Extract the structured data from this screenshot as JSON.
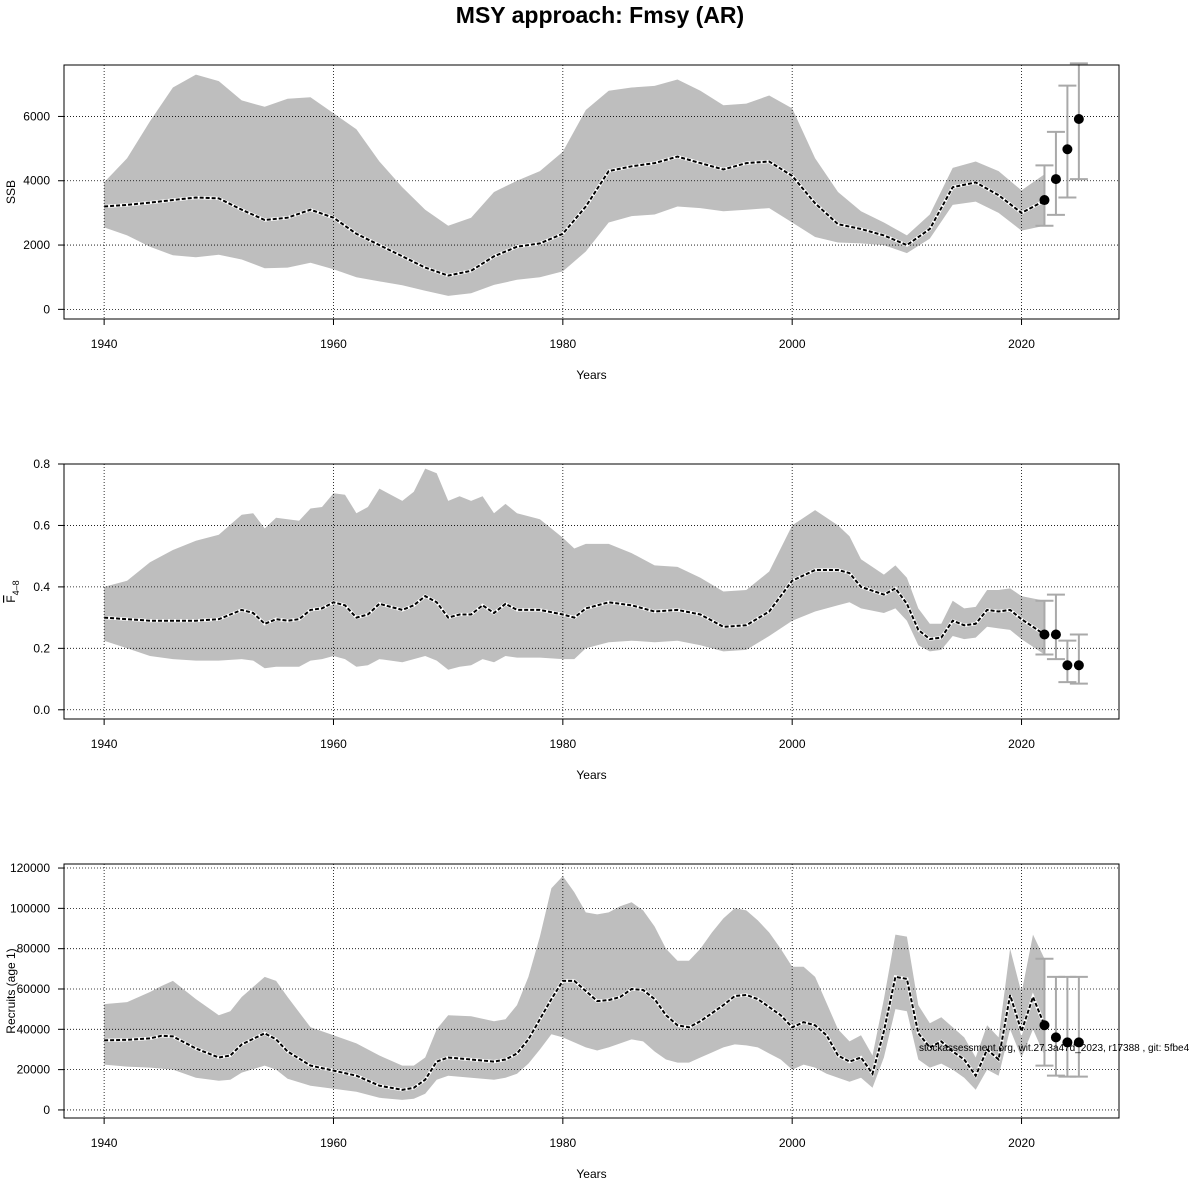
{
  "title": "MSY approach: Fmsy (AR)",
  "footnote": "stockassessment.org, wit.27.3a47d_2023, r17388 , git: 5fbe4",
  "chart_data": [
    {
      "type": "line",
      "id": "ssb",
      "ylabel": "SSB",
      "ylabel_parts": [
        "SSB"
      ],
      "xlabel": "Years",
      "xlim": [
        1936.5,
        2028.5
      ],
      "ylim": [
        -300,
        7600
      ],
      "xticks": [
        1940,
        1960,
        1980,
        2000,
        2020
      ],
      "yticks": [
        0,
        2000,
        4000,
        6000
      ],
      "grid": true,
      "band_color": "#bebebe",
      "line_color": "#000000",
      "series": [
        {
          "x": [
            1940,
            1942,
            1944,
            1946,
            1948,
            1950,
            1952,
            1954,
            1956,
            1958,
            1960,
            1962,
            1964,
            1966,
            1968,
            1970,
            1972,
            1974,
            1976,
            1978,
            1980,
            1982,
            1984,
            1986,
            1988,
            1990,
            1992,
            1994,
            1996,
            1998,
            2000,
            2002,
            2004,
            2006,
            2008,
            2010,
            2012,
            2014,
            2016,
            2018,
            2020,
            2022
          ],
          "estimate": [
            3200,
            3250,
            3320,
            3400,
            3480,
            3450,
            3100,
            2780,
            2850,
            3100,
            2850,
            2350,
            2000,
            1650,
            1300,
            1050,
            1200,
            1650,
            1950,
            2050,
            2350,
            3200,
            4300,
            4450,
            4550,
            4750,
            4550,
            4350,
            4550,
            4600,
            4150,
            3300,
            2650,
            2500,
            2300,
            2000,
            2500,
            3800,
            3950,
            3550,
            3000,
            3380
          ],
          "lower": [
            2550,
            2300,
            1950,
            1680,
            1620,
            1700,
            1550,
            1280,
            1300,
            1450,
            1250,
            1000,
            870,
            750,
            580,
            420,
            500,
            760,
            920,
            1000,
            1180,
            1800,
            2700,
            2900,
            2950,
            3200,
            3150,
            3050,
            3100,
            3150,
            2700,
            2250,
            2080,
            2050,
            2000,
            1750,
            2200,
            3250,
            3350,
            3000,
            2450,
            2600
          ],
          "upper": [
            3950,
            4700,
            5850,
            6900,
            7300,
            7100,
            6500,
            6300,
            6550,
            6600,
            6100,
            5600,
            4600,
            3800,
            3100,
            2600,
            2850,
            3650,
            4000,
            4300,
            4900,
            6200,
            6800,
            6900,
            6950,
            7150,
            6800,
            6350,
            6400,
            6650,
            6250,
            4700,
            3650,
            3050,
            2700,
            2300,
            2950,
            4400,
            4600,
            4300,
            3700,
            4200
          ]
        }
      ],
      "forecast": [
        {
          "year": 2022,
          "median": 3400,
          "low": 2600,
          "high": 4480
        },
        {
          "year": 2023,
          "median": 4050,
          "low": 2940,
          "high": 5520
        },
        {
          "year": 2024,
          "median": 4980,
          "low": 3480,
          "high": 6960
        },
        {
          "year": 2025,
          "median": 5920,
          "low": 4050,
          "high": 7650
        }
      ]
    },
    {
      "type": "line",
      "id": "fbar",
      "ylabel": "F̄4-8",
      "ylabel_parts": [
        "F",
        "4–8"
      ],
      "xlabel": "Years",
      "xlim": [
        1936.5,
        2028.5
      ],
      "ylim": [
        -0.03,
        0.8
      ],
      "xticks": [
        1940,
        1960,
        1980,
        2000,
        2020
      ],
      "yticks": [
        0.0,
        0.2,
        0.4,
        0.6,
        0.8
      ],
      "ytick_labels": [
        "0.0",
        "0.2",
        "0.4",
        "0.6",
        "0.8"
      ],
      "grid": true,
      "band_color": "#bebebe",
      "line_color": "#000000",
      "series": [
        {
          "x": [
            1940,
            1942,
            1944,
            1946,
            1948,
            1950,
            1952,
            1953,
            1954,
            1955,
            1956,
            1957,
            1958,
            1959,
            1960,
            1961,
            1962,
            1963,
            1964,
            1965,
            1966,
            1967,
            1968,
            1969,
            1970,
            1971,
            1972,
            1973,
            1974,
            1975,
            1976,
            1978,
            1980,
            1981,
            1982,
            1984,
            1986,
            1988,
            1990,
            1992,
            1994,
            1996,
            1998,
            2000,
            2002,
            2004,
            2005,
            2006,
            2008,
            2009,
            2010,
            2011,
            2012,
            2013,
            2014,
            2015,
            2016,
            2017,
            2018,
            2019,
            2020,
            2022
          ],
          "estimate": [
            0.3,
            0.295,
            0.29,
            0.29,
            0.29,
            0.295,
            0.325,
            0.315,
            0.28,
            0.295,
            0.29,
            0.295,
            0.325,
            0.33,
            0.35,
            0.34,
            0.3,
            0.31,
            0.345,
            0.335,
            0.325,
            0.34,
            0.37,
            0.35,
            0.3,
            0.31,
            0.31,
            0.34,
            0.315,
            0.345,
            0.325,
            0.325,
            0.31,
            0.3,
            0.33,
            0.35,
            0.34,
            0.32,
            0.325,
            0.31,
            0.27,
            0.275,
            0.32,
            0.42,
            0.455,
            0.455,
            0.445,
            0.4,
            0.375,
            0.395,
            0.345,
            0.26,
            0.23,
            0.235,
            0.29,
            0.275,
            0.28,
            0.325,
            0.32,
            0.325,
            0.295,
            0.245
          ],
          "lower": [
            0.225,
            0.2,
            0.175,
            0.165,
            0.16,
            0.16,
            0.165,
            0.16,
            0.135,
            0.14,
            0.14,
            0.14,
            0.16,
            0.165,
            0.175,
            0.165,
            0.14,
            0.145,
            0.165,
            0.16,
            0.155,
            0.165,
            0.175,
            0.16,
            0.13,
            0.14,
            0.145,
            0.165,
            0.155,
            0.175,
            0.17,
            0.17,
            0.165,
            0.165,
            0.2,
            0.22,
            0.225,
            0.22,
            0.225,
            0.21,
            0.19,
            0.195,
            0.24,
            0.29,
            0.32,
            0.34,
            0.35,
            0.33,
            0.315,
            0.33,
            0.29,
            0.21,
            0.19,
            0.195,
            0.24,
            0.23,
            0.235,
            0.27,
            0.265,
            0.26,
            0.23,
            0.18
          ],
          "upper": [
            0.4,
            0.42,
            0.48,
            0.52,
            0.55,
            0.57,
            0.635,
            0.64,
            0.59,
            0.625,
            0.62,
            0.615,
            0.655,
            0.66,
            0.705,
            0.7,
            0.64,
            0.66,
            0.72,
            0.7,
            0.68,
            0.71,
            0.785,
            0.77,
            0.68,
            0.695,
            0.68,
            0.695,
            0.64,
            0.67,
            0.64,
            0.62,
            0.56,
            0.525,
            0.54,
            0.54,
            0.51,
            0.47,
            0.465,
            0.43,
            0.385,
            0.39,
            0.45,
            0.6,
            0.65,
            0.6,
            0.565,
            0.49,
            0.44,
            0.47,
            0.43,
            0.33,
            0.28,
            0.28,
            0.355,
            0.33,
            0.335,
            0.39,
            0.39,
            0.395,
            0.37,
            0.355
          ]
        }
      ],
      "forecast": [
        {
          "year": 2022,
          "median": 0.245,
          "low": 0.18,
          "high": 0.355
        },
        {
          "year": 2023,
          "median": 0.245,
          "low": 0.165,
          "high": 0.375
        },
        {
          "year": 2024,
          "median": 0.145,
          "low": 0.09,
          "high": 0.225
        },
        {
          "year": 2025,
          "median": 0.145,
          "low": 0.085,
          "high": 0.245
        }
      ]
    },
    {
      "type": "line",
      "id": "recruits",
      "ylabel": "Recruits (age 1)",
      "ylabel_parts": [
        "Recruits (age 1)"
      ],
      "xlabel": "Years",
      "xlim": [
        1936.5,
        2028.5
      ],
      "ylim": [
        -4000,
        122000
      ],
      "xticks": [
        1940,
        1960,
        1980,
        2000,
        2020
      ],
      "yticks": [
        0,
        20000,
        40000,
        60000,
        80000,
        100000,
        120000
      ],
      "grid": true,
      "band_color": "#bebebe",
      "line_color": "#000000",
      "series": [
        {
          "x": [
            1940,
            1942,
            1944,
            1945,
            1946,
            1948,
            1950,
            1951,
            1952,
            1954,
            1955,
            1956,
            1958,
            1960,
            1962,
            1964,
            1966,
            1967,
            1968,
            1969,
            1970,
            1972,
            1974,
            1975,
            1976,
            1977,
            1978,
            1979,
            1980,
            1981,
            1982,
            1983,
            1984,
            1985,
            1986,
            1987,
            1988,
            1989,
            1990,
            1991,
            1992,
            1993,
            1994,
            1995,
            1996,
            1997,
            1998,
            1999,
            2000,
            2001,
            2002,
            2003,
            2004,
            2005,
            2006,
            2007,
            2008,
            2009,
            2010,
            2011,
            2012,
            2013,
            2014,
            2015,
            2016,
            2017,
            2018,
            2019,
            2020,
            2021,
            2022
          ],
          "estimate": [
            34500,
            34800,
            35500,
            36800,
            36500,
            30500,
            26000,
            27000,
            32500,
            38000,
            35000,
            29000,
            22000,
            19500,
            17000,
            12000,
            10000,
            11000,
            15000,
            24000,
            26000,
            25000,
            24000,
            25000,
            28000,
            35000,
            45000,
            55000,
            64000,
            64000,
            59000,
            54000,
            54500,
            56000,
            60000,
            59500,
            55000,
            47000,
            42000,
            41000,
            44000,
            48000,
            52000,
            56500,
            57000,
            55000,
            51000,
            47000,
            41000,
            43500,
            42000,
            37000,
            27000,
            24000,
            26000,
            18000,
            39000,
            66000,
            65000,
            38000,
            31000,
            34000,
            29000,
            25000,
            17000,
            30000,
            25000,
            57000,
            39000,
            56000,
            42000
          ],
          "lower": [
            22500,
            21500,
            21000,
            20500,
            20000,
            16000,
            14500,
            15000,
            18500,
            22000,
            20000,
            15500,
            12000,
            10500,
            9000,
            6000,
            5000,
            5500,
            8000,
            15000,
            17000,
            16000,
            15000,
            16000,
            18000,
            23000,
            30000,
            37500,
            36000,
            33500,
            31000,
            29500,
            31000,
            33000,
            35000,
            34000,
            29000,
            25000,
            23500,
            23500,
            26000,
            28500,
            31000,
            32500,
            32000,
            31000,
            28000,
            25000,
            20000,
            22500,
            21000,
            18000,
            16000,
            14000,
            16000,
            11000,
            26000,
            50000,
            49000,
            25000,
            21000,
            23000,
            20000,
            16000,
            10000,
            20000,
            17000,
            40000,
            26000,
            40000,
            27000
          ],
          "upper": [
            52500,
            53500,
            58500,
            61500,
            64000,
            55000,
            47000,
            49000,
            56000,
            66000,
            64000,
            56000,
            41000,
            37000,
            33000,
            27000,
            22000,
            22000,
            26000,
            40000,
            47000,
            46500,
            44000,
            45000,
            52000,
            66000,
            86000,
            110000,
            116000,
            108000,
            98000,
            97000,
            98000,
            101000,
            103000,
            99000,
            91000,
            80000,
            74000,
            74000,
            80000,
            88000,
            95000,
            100000,
            99000,
            94000,
            88000,
            80000,
            71000,
            71000,
            66000,
            53000,
            40000,
            34000,
            37000,
            27000,
            55000,
            87000,
            86000,
            52000,
            43000,
            46000,
            41000,
            36000,
            26000,
            42000,
            36000,
            80000,
            58000,
            87000,
            75000
          ]
        }
      ],
      "forecast": [
        {
          "year": 2022,
          "median": 42000,
          "low": 22000,
          "high": 75000
        },
        {
          "year": 2023,
          "median": 36000,
          "low": 17000,
          "high": 66000
        },
        {
          "year": 2024,
          "median": 33500,
          "low": 16500,
          "high": 66000
        },
        {
          "year": 2025,
          "median": 33500,
          "low": 16500,
          "high": 66000
        }
      ]
    }
  ]
}
